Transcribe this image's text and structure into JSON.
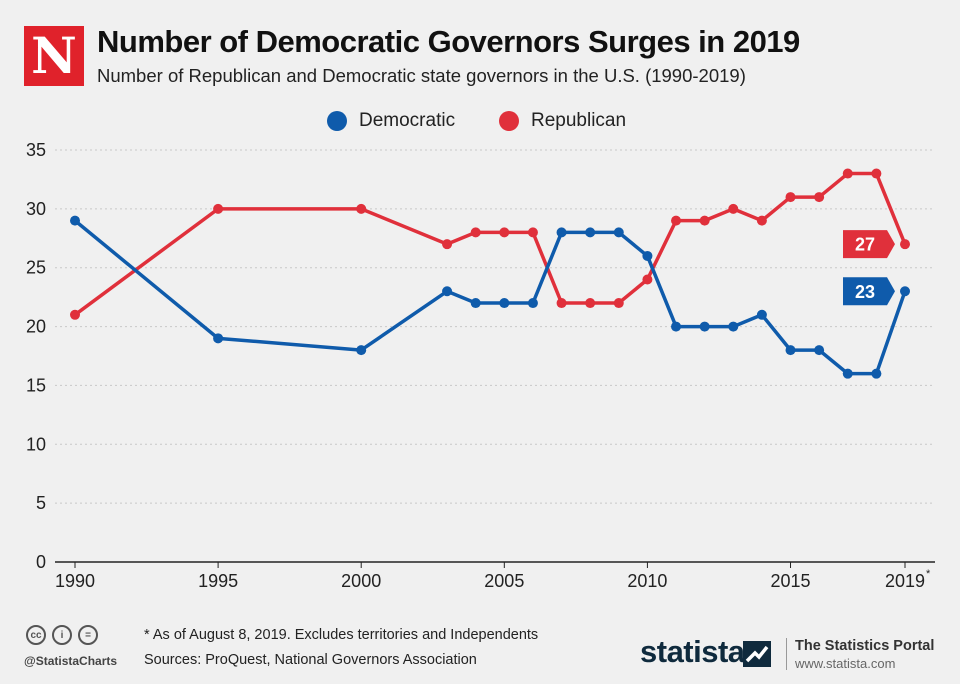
{
  "header": {
    "logo_letter": "N",
    "title": "Number of Democratic Governors Surges in 2019",
    "subtitle": "Number of Republican and Democratic state governors in the U.S. (1990-2019)"
  },
  "colors": {
    "democratic": "#0f5bab",
    "republican": "#e0303b",
    "background": "#f0f0f0",
    "logo": "#e0222b",
    "statista": "#0f2a3d"
  },
  "chart_data": {
    "type": "line",
    "title": "Number of Democratic Governors Surges in 2019",
    "xlabel": "",
    "ylabel": "",
    "xlim": [
      1990,
      2019
    ],
    "ylim": [
      0,
      35
    ],
    "yticks": [
      0,
      5,
      10,
      15,
      20,
      25,
      30,
      35
    ],
    "xticks": [
      {
        "value": 1990,
        "label": "1990"
      },
      {
        "value": 1995,
        "label": "1995"
      },
      {
        "value": 2000,
        "label": "2000"
      },
      {
        "value": 2005,
        "label": "2005"
      },
      {
        "value": 2010,
        "label": "2010"
      },
      {
        "value": 2015,
        "label": "2015"
      },
      {
        "value": 2019,
        "label": "2019",
        "sup": "*"
      }
    ],
    "legend_position": "top-center",
    "grid": true,
    "series": [
      {
        "name": "Democratic",
        "color": "#0f5bab",
        "x": [
          1990,
          1995,
          2000,
          2003,
          2004,
          2005,
          2006,
          2007,
          2008,
          2009,
          2010,
          2011,
          2012,
          2013,
          2014,
          2015,
          2016,
          2017,
          2018,
          2019
        ],
        "values": [
          29,
          19,
          18,
          23,
          22,
          22,
          22,
          28,
          28,
          28,
          26,
          20,
          20,
          20,
          21,
          18,
          18,
          16,
          16,
          23
        ],
        "end_label": "23"
      },
      {
        "name": "Republican",
        "color": "#e0303b",
        "x": [
          1990,
          1995,
          2000,
          2003,
          2004,
          2005,
          2006,
          2007,
          2008,
          2009,
          2010,
          2011,
          2012,
          2013,
          2014,
          2015,
          2016,
          2017,
          2018,
          2019
        ],
        "values": [
          21,
          30,
          30,
          27,
          28,
          28,
          28,
          22,
          22,
          22,
          24,
          29,
          29,
          30,
          29,
          31,
          31,
          33,
          33,
          27
        ],
        "end_label": "27"
      }
    ]
  },
  "footer": {
    "handle": "@StatistaCharts",
    "note": "* As of August 8, 2019. Excludes territories and Independents",
    "sources": "Sources: ProQuest, National Governors Association",
    "brand": "statista",
    "portal_title": "The Statistics Portal",
    "portal_url": "www.statista.com",
    "cc_icons": [
      "cc-icon",
      "by-icon",
      "nd-icon"
    ]
  }
}
